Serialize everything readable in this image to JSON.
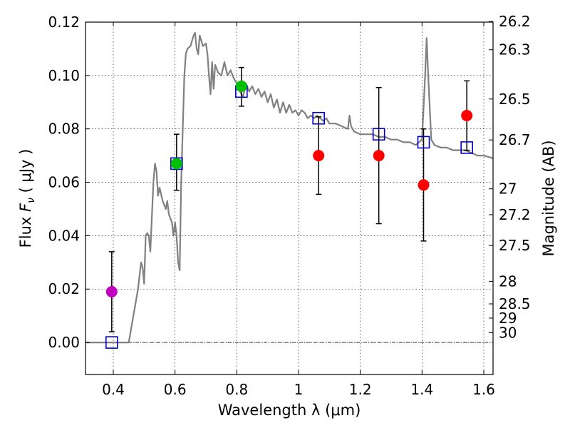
{
  "chart_data": {
    "type": "scatter",
    "xlabel": "Wavelength  λ (μm)",
    "ylabel_prefix": "Flux  ",
    "ylabel_symbol": "F",
    "ylabel_subscript": "ν",
    "ylabel_unit": "  ( μJy )",
    "y2label": "Magnitude (AB)",
    "xlim": [
      0.31,
      1.63
    ],
    "ylim": [
      -0.012,
      0.12
    ],
    "grid": true,
    "xticks": [
      {
        "value": 0.4,
        "label": "0.4"
      },
      {
        "value": 0.6,
        "label": "0.6"
      },
      {
        "value": 0.8,
        "label": "0.8"
      },
      {
        "value": 1.0,
        "label": "1"
      },
      {
        "value": 1.2,
        "label": "1.2"
      },
      {
        "value": 1.4,
        "label": "1.4"
      },
      {
        "value": 1.6,
        "label": "1.6"
      }
    ],
    "yticks": [
      {
        "value": 0.0,
        "label": "0.00"
      },
      {
        "value": 0.02,
        "label": "0.02"
      },
      {
        "value": 0.04,
        "label": "0.04"
      },
      {
        "value": 0.06,
        "label": "0.06"
      },
      {
        "value": 0.08,
        "label": "0.08"
      },
      {
        "value": 0.1,
        "label": "0.10"
      },
      {
        "value": 0.12,
        "label": "0.12"
      }
    ],
    "y2ticks": [
      {
        "mag": 26.2,
        "label": "26.2"
      },
      {
        "mag": 26.3,
        "label": "26.3"
      },
      {
        "mag": 26.5,
        "label": "26.5"
      },
      {
        "mag": 26.7,
        "label": "26.7"
      },
      {
        "mag": 27.0,
        "label": "27"
      },
      {
        "mag": 27.2,
        "label": "27.2"
      },
      {
        "mag": 27.5,
        "label": "27.5"
      },
      {
        "mag": 28.0,
        "label": "28"
      },
      {
        "mag": 28.5,
        "label": "28.5"
      },
      {
        "mag": 29.0,
        "label": "29"
      },
      {
        "mag": 30.0,
        "label": "30"
      }
    ],
    "series": [
      {
        "kind": "model-spectrum",
        "color": "#808080",
        "points": [
          [
            0.31,
            0.0
          ],
          [
            0.4,
            0.0
          ],
          [
            0.45,
            0.0
          ],
          [
            0.465,
            0.01
          ],
          [
            0.48,
            0.02
          ],
          [
            0.49,
            0.03
          ],
          [
            0.495,
            0.028
          ],
          [
            0.5,
            0.022
          ],
          [
            0.505,
            0.04
          ],
          [
            0.51,
            0.041
          ],
          [
            0.515,
            0.04
          ],
          [
            0.52,
            0.034
          ],
          [
            0.53,
            0.06
          ],
          [
            0.535,
            0.067
          ],
          [
            0.54,
            0.064
          ],
          [
            0.545,
            0.055
          ],
          [
            0.55,
            0.058
          ],
          [
            0.56,
            0.053
          ],
          [
            0.57,
            0.05
          ],
          [
            0.575,
            0.053
          ],
          [
            0.58,
            0.048
          ],
          [
            0.59,
            0.045
          ],
          [
            0.595,
            0.04
          ],
          [
            0.6,
            0.045
          ],
          [
            0.605,
            0.04
          ],
          [
            0.61,
            0.03
          ],
          [
            0.615,
            0.027
          ],
          [
            0.62,
            0.06
          ],
          [
            0.625,
            0.08
          ],
          [
            0.63,
            0.1
          ],
          [
            0.635,
            0.108
          ],
          [
            0.64,
            0.11
          ],
          [
            0.65,
            0.111
          ],
          [
            0.66,
            0.115
          ],
          [
            0.665,
            0.116
          ],
          [
            0.67,
            0.11
          ],
          [
            0.675,
            0.108
          ],
          [
            0.68,
            0.115
          ],
          [
            0.69,
            0.111
          ],
          [
            0.7,
            0.112
          ],
          [
            0.705,
            0.108
          ],
          [
            0.71,
            0.1
          ],
          [
            0.715,
            0.093
          ],
          [
            0.72,
            0.105
          ],
          [
            0.725,
            0.095
          ],
          [
            0.73,
            0.104
          ],
          [
            0.74,
            0.101
          ],
          [
            0.75,
            0.1
          ],
          [
            0.76,
            0.105
          ],
          [
            0.77,
            0.1
          ],
          [
            0.78,
            0.102
          ],
          [
            0.79,
            0.099
          ],
          [
            0.8,
            0.097
          ],
          [
            0.81,
            0.094
          ],
          [
            0.82,
            0.092
          ],
          [
            0.83,
            0.097
          ],
          [
            0.84,
            0.094
          ],
          [
            0.85,
            0.096
          ],
          [
            0.86,
            0.093
          ],
          [
            0.87,
            0.095
          ],
          [
            0.88,
            0.092
          ],
          [
            0.89,
            0.094
          ],
          [
            0.9,
            0.09
          ],
          [
            0.91,
            0.093
          ],
          [
            0.92,
            0.088
          ],
          [
            0.93,
            0.091
          ],
          [
            0.94,
            0.086
          ],
          [
            0.95,
            0.09
          ],
          [
            0.96,
            0.086
          ],
          [
            0.97,
            0.089
          ],
          [
            0.98,
            0.086
          ],
          [
            0.99,
            0.087
          ],
          [
            1.0,
            0.085
          ],
          [
            1.01,
            0.087
          ],
          [
            1.02,
            0.086
          ],
          [
            1.03,
            0.084
          ],
          [
            1.04,
            0.085
          ],
          [
            1.05,
            0.084
          ],
          [
            1.06,
            0.085
          ],
          [
            1.07,
            0.084
          ],
          [
            1.08,
            0.083
          ],
          [
            1.09,
            0.084
          ],
          [
            1.1,
            0.082
          ],
          [
            1.12,
            0.082
          ],
          [
            1.14,
            0.081
          ],
          [
            1.16,
            0.08
          ],
          [
            1.165,
            0.085
          ],
          [
            1.17,
            0.081
          ],
          [
            1.18,
            0.079
          ],
          [
            1.2,
            0.078
          ],
          [
            1.22,
            0.078
          ],
          [
            1.24,
            0.078
          ],
          [
            1.26,
            0.077
          ],
          [
            1.28,
            0.077
          ],
          [
            1.3,
            0.076
          ],
          [
            1.32,
            0.076
          ],
          [
            1.34,
            0.075
          ],
          [
            1.36,
            0.075
          ],
          [
            1.38,
            0.074
          ],
          [
            1.4,
            0.076
          ],
          [
            1.41,
            0.1
          ],
          [
            1.415,
            0.114
          ],
          [
            1.42,
            0.1
          ],
          [
            1.43,
            0.076
          ],
          [
            1.44,
            0.074
          ],
          [
            1.46,
            0.073
          ],
          [
            1.48,
            0.073
          ],
          [
            1.5,
            0.072
          ],
          [
            1.52,
            0.072
          ],
          [
            1.54,
            0.072
          ],
          [
            1.56,
            0.071
          ],
          [
            1.58,
            0.07
          ],
          [
            1.6,
            0.07
          ],
          [
            1.63,
            0.069
          ]
        ]
      },
      {
        "kind": "model-photometry",
        "marker": "open-square",
        "color": "#0000cc",
        "points": [
          [
            0.395,
            0.0
          ],
          [
            0.605,
            0.067
          ],
          [
            0.815,
            0.094
          ],
          [
            1.065,
            0.084
          ],
          [
            1.26,
            0.078
          ],
          [
            1.405,
            0.075
          ],
          [
            1.545,
            0.073
          ]
        ]
      },
      {
        "kind": "observed",
        "marker": "filled-circle",
        "points": [
          {
            "x": 0.395,
            "y": 0.019,
            "err_lo": 0.015,
            "err_hi": 0.015,
            "color": "#bf00bf"
          },
          {
            "x": 0.605,
            "y": 0.067,
            "err_lo": 0.01,
            "err_hi": 0.011,
            "color": "#00bf00"
          },
          {
            "x": 0.815,
            "y": 0.096,
            "err_lo": 0.0075,
            "err_hi": 0.007,
            "color": "#00bf00"
          },
          {
            "x": 1.065,
            "y": 0.07,
            "err_lo": 0.0145,
            "err_hi": 0.0145,
            "color": "#ff0000"
          },
          {
            "x": 1.26,
            "y": 0.07,
            "err_lo": 0.0255,
            "err_hi": 0.0255,
            "color": "#ff0000"
          },
          {
            "x": 1.405,
            "y": 0.059,
            "err_lo": 0.021,
            "err_hi": 0.021,
            "color": "#ff0000"
          },
          {
            "x": 1.545,
            "y": 0.085,
            "err_lo": 0.013,
            "err_hi": 0.013,
            "color": "#ff0000"
          }
        ]
      }
    ]
  }
}
